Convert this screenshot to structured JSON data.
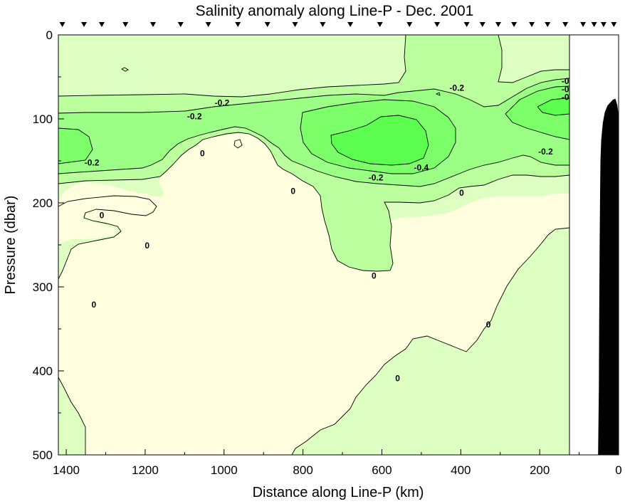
{
  "chart_data": {
    "type": "contour",
    "title": "Salinity anomaly along Line-P - Dec. 2001",
    "xlabel": "Distance along Line-P (km)",
    "ylabel": "Pressure (dbar)",
    "xlim": [
      1420,
      0
    ],
    "ylim": [
      500,
      0
    ],
    "x_reversed": true,
    "y_reversed": true,
    "x_ticks": [
      1400,
      1200,
      1000,
      800,
      600,
      400,
      200,
      0
    ],
    "y_ticks": [
      0,
      100,
      200,
      300,
      400,
      500
    ],
    "station_distances_km": [
      1410,
      1355,
      1310,
      1250,
      1180,
      1110,
      1040,
      965,
      890,
      820,
      750,
      680,
      605,
      530,
      460,
      385,
      345,
      305,
      265,
      220,
      180,
      135,
      90,
      62,
      38,
      12
    ],
    "bathymetry_max_depth_dbar": 76,
    "data_edge_km": 126,
    "levels": [
      {
        "value": 0.2,
        "color": "#ffffe0"
      },
      {
        "value": 0,
        "color": "#ddffc2"
      },
      {
        "value": -0.1,
        "color": "#bbff9f"
      },
      {
        "value": -0.2,
        "color": "#9cff85"
      },
      {
        "value": -0.3,
        "color": "#7dff6a"
      },
      {
        "value": -0.4,
        "color": "#5cff4f"
      }
    ],
    "contour_labels": [
      {
        "text": "-0.2",
        "x": 1005,
        "y": 81
      },
      {
        "text": "-0.2",
        "x": 1075,
        "y": 97
      },
      {
        "text": "-0.2",
        "x": 410,
        "y": 63
      },
      {
        "text": "-0.2",
        "x": 1335,
        "y": 152
      },
      {
        "text": "-0.2",
        "x": 615,
        "y": 170
      },
      {
        "text": "-0.2",
        "x": 185,
        "y": 139
      },
      {
        "text": "-0.4",
        "x": 500,
        "y": 158
      },
      {
        "text": "-0",
        "x": 135,
        "y": 55
      },
      {
        "text": "-0",
        "x": 135,
        "y": 65
      },
      {
        "text": "-0",
        "x": 135,
        "y": 74
      },
      {
        "text": "0",
        "x": 1055,
        "y": 141
      },
      {
        "text": "0",
        "x": 825,
        "y": 186
      },
      {
        "text": "0",
        "x": 398,
        "y": 188
      },
      {
        "text": "0",
        "x": 1310,
        "y": 215
      },
      {
        "text": "0",
        "x": 1195,
        "y": 251
      },
      {
        "text": "0",
        "x": 1330,
        "y": 321
      },
      {
        "text": "0",
        "x": 620,
        "y": 287
      },
      {
        "text": "0",
        "x": 330,
        "y": 345
      },
      {
        "text": "0",
        "x": 560,
        "y": 409
      }
    ]
  }
}
